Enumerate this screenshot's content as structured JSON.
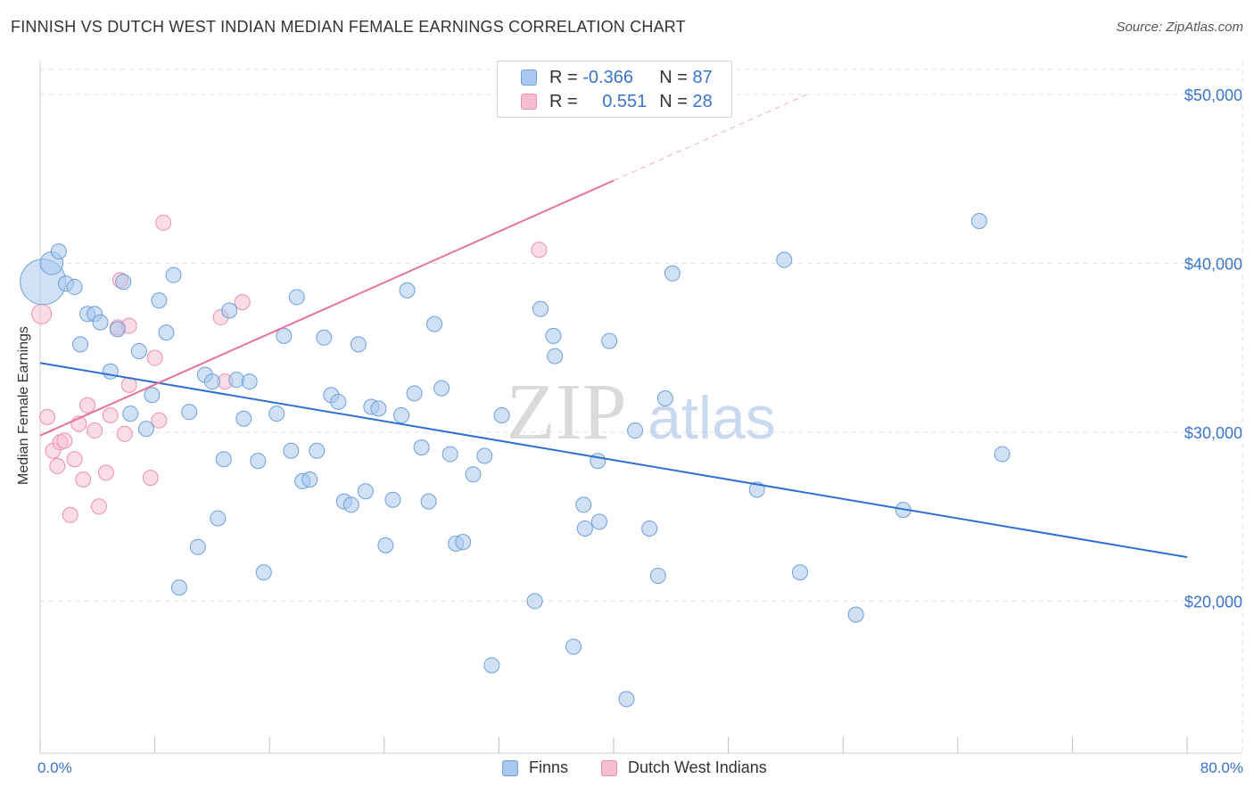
{
  "title": "FINNISH VS DUTCH WEST INDIAN MEDIAN FEMALE EARNINGS CORRELATION CHART",
  "source": "Source: ZipAtlas.com",
  "watermark": {
    "zip": "ZIP",
    "atlas": "atlas"
  },
  "colors": {
    "finns_fill": "#a9c8ef",
    "finns_stroke": "#6e9fdb",
    "finns_line": "#2f6fd0",
    "dwi_fill": "#f6bfd0",
    "dwi_stroke": "#ec8fae",
    "dwi_line": "#e8739a",
    "axis_text": "#3b74c9",
    "grid": "#e2e2e2"
  },
  "legend_top": [
    {
      "r_label": "R = ",
      "r_value": "-0.366",
      "n_label": "N = ",
      "n_value": "87"
    },
    {
      "r_label": "R = ",
      "r_value": "0.551",
      "n_label": "N = ",
      "n_value": "28"
    }
  ],
  "chart_data": {
    "type": "scatter",
    "title": "FINNISH VS DUTCH WEST INDIAN MEDIAN FEMALE EARNINGS CORRELATION CHART",
    "xlabel": "",
    "ylabel": "Median Female Earnings",
    "xlim": [
      0,
      80
    ],
    "ylim": [
      11000,
      52000
    ],
    "x_tick_labels": [
      "0.0%",
      "80.0%"
    ],
    "y_ticks": [
      20000,
      30000,
      40000,
      50000
    ],
    "y_tick_labels": [
      "$20,000",
      "$30,000",
      "$40,000",
      "$50,000"
    ],
    "legend_position": "bottom-center",
    "series": [
      {
        "name": "Finns",
        "trend": {
          "x": [
            0,
            80
          ],
          "y": [
            34100,
            22600
          ]
        },
        "points": [
          [
            0.2,
            38900,
            3
          ],
          [
            0.8,
            40000,
            1.5
          ],
          [
            1.3,
            40700,
            1
          ],
          [
            1.8,
            38800,
            1
          ],
          [
            2.4,
            38600,
            1
          ],
          [
            2.8,
            35200,
            1
          ],
          [
            3.3,
            37000,
            1
          ],
          [
            3.8,
            37000,
            1
          ],
          [
            4.2,
            36500,
            1
          ],
          [
            4.9,
            33600,
            1
          ],
          [
            5.4,
            36100,
            1
          ],
          [
            5.8,
            38900,
            1
          ],
          [
            6.3,
            31100,
            1
          ],
          [
            6.9,
            34800,
            1
          ],
          [
            7.4,
            30200,
            1
          ],
          [
            7.8,
            32200,
            1
          ],
          [
            8.3,
            37800,
            1
          ],
          [
            8.8,
            35900,
            1
          ],
          [
            9.3,
            39300,
            1
          ],
          [
            9.7,
            20800,
            1
          ],
          [
            10.4,
            31200,
            1
          ],
          [
            11.0,
            23200,
            1
          ],
          [
            11.5,
            33400,
            1
          ],
          [
            12.0,
            33000,
            1
          ],
          [
            12.4,
            24900,
            1
          ],
          [
            12.8,
            28400,
            1
          ],
          [
            13.2,
            37200,
            1
          ],
          [
            13.7,
            33100,
            1
          ],
          [
            14.2,
            30800,
            1
          ],
          [
            14.6,
            33000,
            1
          ],
          [
            15.2,
            28300,
            1
          ],
          [
            15.6,
            21700,
            1
          ],
          [
            16.5,
            31100,
            1
          ],
          [
            17.0,
            35700,
            1
          ],
          [
            17.5,
            28900,
            1
          ],
          [
            17.9,
            38000,
            1
          ],
          [
            18.3,
            27100,
            1
          ],
          [
            18.8,
            27200,
            1
          ],
          [
            19.3,
            28900,
            1
          ],
          [
            19.8,
            35600,
            1
          ],
          [
            20.3,
            32200,
            1
          ],
          [
            20.8,
            31800,
            1
          ],
          [
            21.2,
            25900,
            1
          ],
          [
            21.7,
            25700,
            1
          ],
          [
            22.2,
            35200,
            1
          ],
          [
            22.7,
            26500,
            1
          ],
          [
            23.1,
            31500,
            1
          ],
          [
            23.6,
            31400,
            1
          ],
          [
            24.1,
            23300,
            1
          ],
          [
            24.6,
            26000,
            1
          ],
          [
            25.2,
            31000,
            1
          ],
          [
            25.6,
            38400,
            1
          ],
          [
            26.1,
            32300,
            1
          ],
          [
            26.6,
            29100,
            1
          ],
          [
            27.1,
            25900,
            1
          ],
          [
            27.5,
            36400,
            1
          ],
          [
            28.0,
            32600,
            1
          ],
          [
            28.6,
            28700,
            1
          ],
          [
            29.0,
            23400,
            1
          ],
          [
            29.5,
            23500,
            1
          ],
          [
            30.2,
            27500,
            1
          ],
          [
            31.0,
            28600,
            1
          ],
          [
            31.5,
            16200,
            1
          ],
          [
            32.2,
            31000,
            1
          ],
          [
            34.5,
            20000,
            1
          ],
          [
            34.9,
            37300,
            1
          ],
          [
            35.8,
            35700,
            1
          ],
          [
            35.9,
            34500,
            1
          ],
          [
            37.2,
            17300,
            1
          ],
          [
            37.9,
            25700,
            1
          ],
          [
            38.0,
            24300,
            1
          ],
          [
            38.9,
            28300,
            1
          ],
          [
            39.0,
            24700,
            1
          ],
          [
            39.7,
            35400,
            1
          ],
          [
            40.9,
            14200,
            1
          ],
          [
            41.5,
            30100,
            1
          ],
          [
            43.1,
            21500,
            1
          ],
          [
            43.6,
            32000,
            1
          ],
          [
            42.5,
            24300,
            1
          ],
          [
            44.1,
            39400,
            1
          ],
          [
            50.0,
            26600,
            1
          ],
          [
            51.9,
            40200,
            1
          ],
          [
            53.0,
            21700,
            1
          ],
          [
            56.9,
            19200,
            1
          ],
          [
            60.2,
            25400,
            1
          ],
          [
            65.5,
            42500,
            1
          ],
          [
            67.1,
            28700,
            1
          ]
        ]
      },
      {
        "name": "Dutch West Indians",
        "trend": {
          "x": [
            0,
            40
          ],
          "y": [
            29800,
            44900
          ]
        },
        "trend_extension": {
          "x": [
            40,
            53.5
          ],
          "y": [
            44900,
            50000
          ]
        },
        "points": [
          [
            0.1,
            37000,
            1.3
          ],
          [
            0.5,
            30900,
            1
          ],
          [
            0.9,
            28900,
            1
          ],
          [
            1.2,
            28000,
            1
          ],
          [
            1.4,
            29400,
            1
          ],
          [
            1.7,
            29500,
            1
          ],
          [
            2.1,
            25100,
            1
          ],
          [
            2.4,
            28400,
            1
          ],
          [
            2.7,
            30500,
            1
          ],
          [
            3.0,
            27200,
            1
          ],
          [
            3.3,
            31600,
            1
          ],
          [
            3.8,
            30100,
            1
          ],
          [
            4.1,
            25600,
            1
          ],
          [
            4.6,
            27600,
            1
          ],
          [
            4.9,
            31000,
            1
          ],
          [
            5.4,
            36200,
            1
          ],
          [
            5.6,
            39000,
            1
          ],
          [
            5.9,
            29900,
            1
          ],
          [
            6.2,
            36300,
            1
          ],
          [
            6.2,
            32800,
            1
          ],
          [
            7.7,
            27300,
            1
          ],
          [
            8.0,
            34400,
            1
          ],
          [
            8.3,
            30700,
            1
          ],
          [
            8.6,
            42400,
            1
          ],
          [
            12.6,
            36800,
            1
          ],
          [
            12.9,
            33000,
            1
          ],
          [
            14.1,
            37700,
            1
          ],
          [
            34.8,
            40800,
            1
          ]
        ]
      }
    ]
  },
  "legend_bottom": [
    {
      "label": "Finns"
    },
    {
      "label": "Dutch West Indians"
    }
  ]
}
